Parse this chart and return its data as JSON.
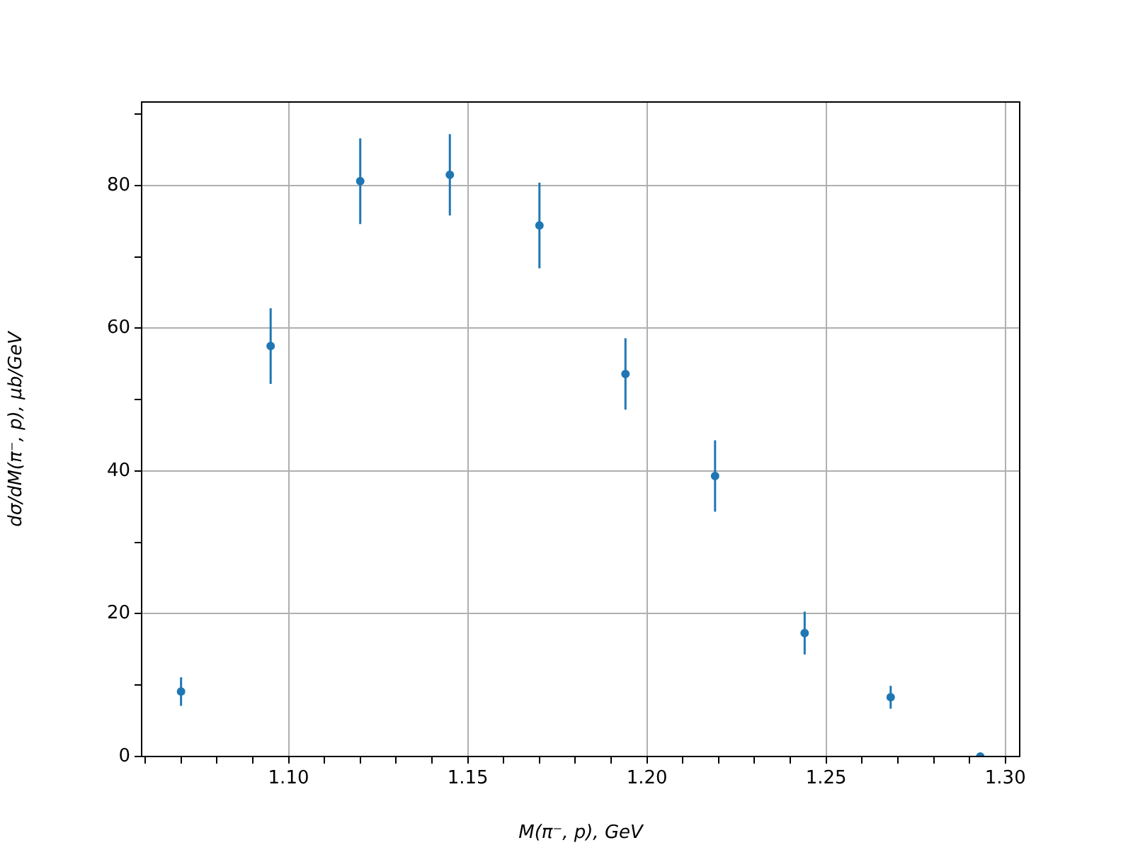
{
  "chart_data": {
    "type": "scatter",
    "xlabel": "M(π⁻, p), GeV",
    "ylabel": "dσ/dM(π⁻, p), μb/GeV",
    "x": [
      1.07,
      1.095,
      1.12,
      1.145,
      1.17,
      1.194,
      1.219,
      1.244,
      1.268,
      1.293
    ],
    "series": [
      {
        "color": "#1f77b4",
        "values": [
          9.1,
          57.5,
          80.6,
          81.5,
          74.4,
          53.6,
          39.3,
          17.3,
          8.3,
          0
        ],
        "errors": [
          2,
          5.3,
          6,
          5.7,
          6,
          5,
          5,
          3,
          1.6,
          0
        ]
      }
    ],
    "xlim": [
      1.059,
      1.304
    ],
    "xticks": [
      {
        "value": 1.06,
        "label": null
      },
      {
        "value": 1.07,
        "label": null
      },
      {
        "value": 1.08,
        "label": null
      },
      {
        "value": 1.09,
        "label": null
      },
      {
        "value": 1.1,
        "label": "1.10"
      },
      {
        "value": 1.11,
        "label": null
      },
      {
        "value": 1.12,
        "label": null
      },
      {
        "value": 1.13,
        "label": null
      },
      {
        "value": 1.14,
        "label": null
      },
      {
        "value": 1.15,
        "label": "1.15"
      },
      {
        "value": 1.16,
        "label": null
      },
      {
        "value": 1.17,
        "label": null
      },
      {
        "value": 1.18,
        "label": null
      },
      {
        "value": 1.19,
        "label": null
      },
      {
        "value": 1.2,
        "label": "1.20"
      },
      {
        "value": 1.21,
        "label": null
      },
      {
        "value": 1.22,
        "label": null
      },
      {
        "value": 1.23,
        "label": null
      },
      {
        "value": 1.24,
        "label": null
      },
      {
        "value": 1.25,
        "label": "1.25"
      },
      {
        "value": 1.26,
        "label": null
      },
      {
        "value": 1.27,
        "label": null
      },
      {
        "value": 1.28,
        "label": null
      },
      {
        "value": 1.29,
        "label": null
      },
      {
        "value": 1.3,
        "label": "1.30"
      }
    ],
    "ylim": [
      0,
      91.7
    ],
    "yticks": [
      0,
      {
        "value": 10,
        "label": null
      },
      20,
      {
        "value": 30,
        "label": null
      },
      40,
      {
        "value": 50,
        "label": null
      },
      60,
      {
        "value": 70,
        "label": null
      },
      80,
      {
        "value": 90,
        "label": null
      }
    ],
    "grid": true,
    "marker": "circle",
    "legend": false
  }
}
